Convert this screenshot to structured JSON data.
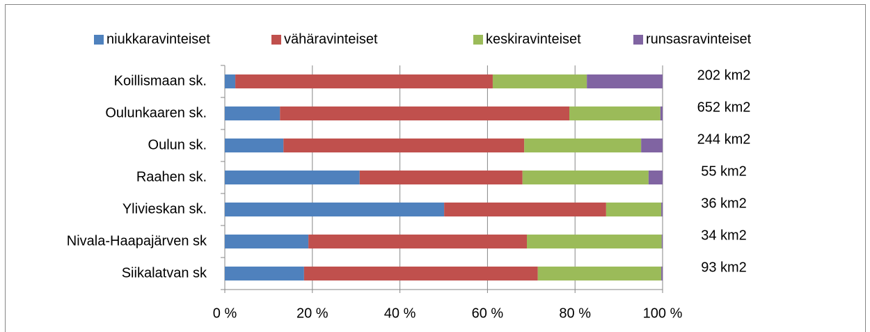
{
  "chart_data": {
    "type": "stacked_barh",
    "categories": [
      "Koillismaan sk.",
      "Oulunkaaren sk.",
      "Oulun sk.",
      "Raahen sk.",
      "Ylivieskan sk.",
      "Nivala-Haapajärven sk",
      "Siikalatvan sk"
    ],
    "series": [
      {
        "name": "niukkaravinteiset",
        "color": "#4f81bd",
        "values": [
          2.4,
          12.6,
          13.4,
          30.8,
          50.1,
          19.1,
          18.1
        ]
      },
      {
        "name": "vähäravinteiset",
        "color": "#c0504d",
        "values": [
          58.8,
          66.1,
          55.0,
          37.2,
          37.0,
          49.9,
          53.4
        ]
      },
      {
        "name": "keskiravinteiset",
        "color": "#9bbb59",
        "values": [
          21.5,
          20.8,
          26.7,
          28.8,
          12.6,
          30.8,
          28.2
        ]
      },
      {
        "name": "runsasravinteiset",
        "color": "#8064a2",
        "values": [
          17.3,
          0.5,
          4.9,
          3.2,
          0.3,
          0.2,
          0.3
        ]
      }
    ],
    "annotations": [
      "202 km2",
      "652 km2",
      "244 km2",
      "55 km2",
      "36 km2",
      "34 km2",
      "93 km2"
    ],
    "xlim": [
      0,
      100
    ],
    "xticks": [
      {
        "value": 0,
        "label": "0 %"
      },
      {
        "value": 20,
        "label": "20 %"
      },
      {
        "value": 40,
        "label": "40 %"
      },
      {
        "value": 60,
        "label": "60 %"
      },
      {
        "value": 80,
        "label": "80 %"
      },
      {
        "value": 100,
        "label": "100 %"
      }
    ],
    "grid": true,
    "legend": "top"
  }
}
